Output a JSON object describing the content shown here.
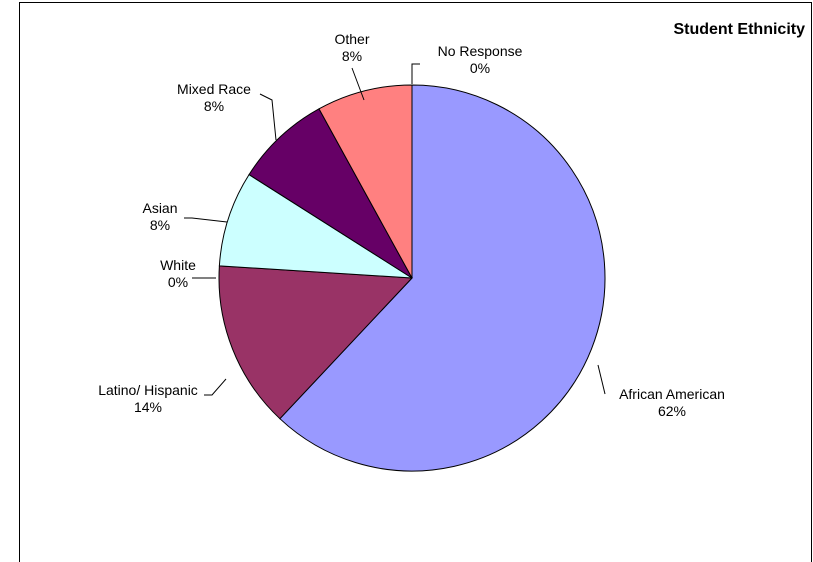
{
  "chart_data": {
    "type": "pie",
    "title": "Student Ethnicity",
    "slices": [
      {
        "name": "African American",
        "value": 62,
        "label": "62%",
        "color": "#9999FF"
      },
      {
        "name": "Latino/ Hispanic",
        "value": 14,
        "label": "14%",
        "color": "#993366"
      },
      {
        "name": "White",
        "value": 0,
        "label": "0%",
        "color": "#FFFFCC"
      },
      {
        "name": "Asian",
        "value": 8,
        "label": "8%",
        "color": "#CCFFFF"
      },
      {
        "name": "Mixed Race",
        "value": 8,
        "label": "8%",
        "color": "#660066"
      },
      {
        "name": "Other",
        "value": 8,
        "label": "8%",
        "color": "#FF8080"
      },
      {
        "name": "No Response",
        "value": 0,
        "label": "0%",
        "color": "#0066CC"
      }
    ],
    "start_angle_deg": 0,
    "direction": "clockwise",
    "border_color": "#000000"
  }
}
